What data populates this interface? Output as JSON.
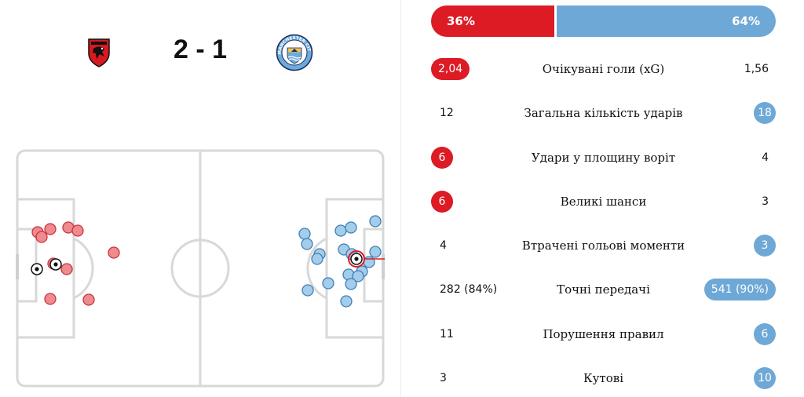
{
  "match": {
    "score": "2 - 1",
    "home_team_icon": "afc-bournemouth-crest-icon",
    "away_team_icon": "manchester-city-crest-icon",
    "away_crest_text": "MANCHESTER CITY",
    "colors": {
      "home": "#dc1b25",
      "away": "#6ea8d6"
    }
  },
  "possession": {
    "home": "36%",
    "away": "64%",
    "home_fraction": 0.36
  },
  "stats": [
    {
      "label": "Очікувані голи (xG)",
      "home": "2,04",
      "away": "1,56",
      "highlight": "home"
    },
    {
      "label": "Загальна кількість ударів",
      "home": "12",
      "away": "18",
      "highlight": "away"
    },
    {
      "label": "Удари у площину воріт",
      "home": "6",
      "away": "4",
      "highlight": "home"
    },
    {
      "label": "Великі шанси",
      "home": "6",
      "away": "3",
      "highlight": "home"
    },
    {
      "label": "Втрачені гольові моменти",
      "home": "4",
      "away": "3",
      "highlight": "away"
    },
    {
      "label": "Точні передачі",
      "home": "282 (84%)",
      "away": "541 (90%)",
      "highlight": "away"
    },
    {
      "label": "Порушення правил",
      "home": "11",
      "away": "6",
      "highlight": "away"
    },
    {
      "label": "Кутові",
      "home": "3",
      "away": "10",
      "highlight": "away"
    }
  ]
}
